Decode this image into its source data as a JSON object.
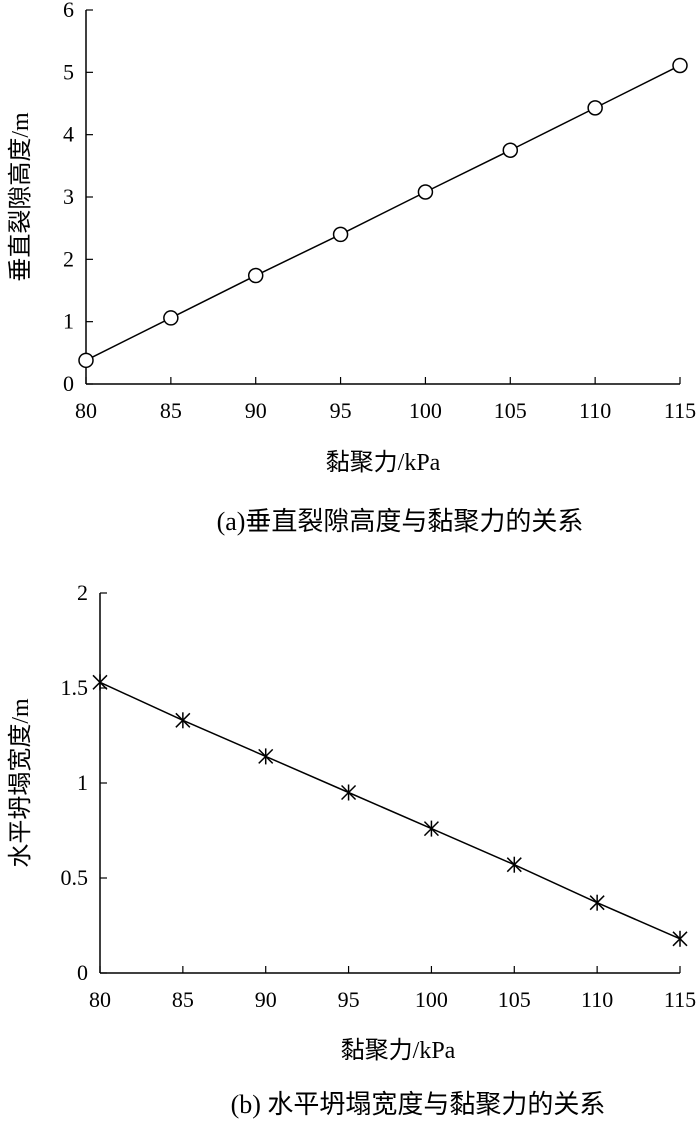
{
  "chart_data": [
    {
      "type": "line",
      "caption": "(a)垂直裂隙高度与黏聚力的关系",
      "xlabel": "黏聚力/kPa",
      "ylabel": "垂直裂隙高度/m",
      "xlim": [
        80,
        115
      ],
      "ylim": [
        0,
        6
      ],
      "xticks": [
        "80",
        "85",
        "90",
        "95",
        "100",
        "105",
        "110",
        "115"
      ],
      "yticks": [
        "0",
        "1",
        "2",
        "3",
        "4",
        "5",
        "6"
      ],
      "marker": "circle",
      "grid": false,
      "x": [
        80,
        85,
        90,
        95,
        100,
        105,
        110,
        115
      ],
      "y": [
        0.38,
        1.06,
        1.74,
        2.4,
        3.08,
        3.75,
        4.43,
        5.11
      ]
    },
    {
      "type": "line",
      "caption": "(b) 水平坍塌宽度与黏聚力的关系",
      "xlabel": "黏聚力/kPa",
      "ylabel": "水平坍塌宽度/m",
      "xlim": [
        80,
        115
      ],
      "ylim": [
        0,
        2
      ],
      "xticks": [
        "80",
        "85",
        "90",
        "95",
        "100",
        "105",
        "110",
        "115"
      ],
      "yticks": [
        "0",
        "0.5",
        "1",
        "1.5",
        "2"
      ],
      "marker": "asterisk",
      "grid": false,
      "x": [
        80,
        85,
        90,
        95,
        100,
        105,
        110,
        115
      ],
      "y": [
        1.53,
        1.33,
        1.14,
        0.95,
        0.76,
        0.57,
        0.37,
        0.18
      ]
    }
  ]
}
